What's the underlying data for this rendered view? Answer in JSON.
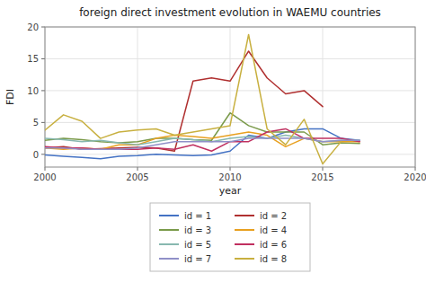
{
  "chart_data": {
    "type": "line",
    "title": "foreign direct investment evolution in WAEMU countries",
    "xlabel": "year",
    "ylabel": "FDI",
    "x": [
      2000,
      2001,
      2002,
      2003,
      2004,
      2005,
      2006,
      2007,
      2008,
      2009,
      2010,
      2011,
      2012,
      2013,
      2014,
      2015,
      2016,
      2017
    ],
    "xlim": [
      2000,
      2020
    ],
    "xticks": [
      2000,
      2005,
      2010,
      2015,
      2020
    ],
    "ylim": [
      -2,
      20
    ],
    "yticks": [
      0,
      5,
      10,
      15,
      20
    ],
    "grid": true,
    "legend": "bottom",
    "series": [
      {
        "name": "id = 1",
        "color": "#4472c4",
        "values": [
          -0.1,
          -0.3,
          -0.5,
          -0.7,
          -0.3,
          -0.2,
          0.0,
          -0.1,
          -0.2,
          -0.1,
          0.5,
          3.0,
          2.5,
          3.5,
          4.0,
          4.0,
          2.5,
          2.2
        ]
      },
      {
        "name": "id = 2",
        "color": "#b03030",
        "values": [
          1.0,
          1.2,
          0.8,
          0.9,
          1.0,
          1.1,
          1.0,
          0.5,
          11.5,
          12.0,
          11.5,
          16.2,
          12.0,
          9.5,
          10.0,
          7.5,
          null,
          null
        ]
      },
      {
        "name": "id = 3",
        "color": "#7a9a4a",
        "values": [
          2.2,
          2.5,
          2.3,
          2.0,
          1.8,
          2.0,
          2.5,
          2.5,
          2.3,
          2.2,
          6.5,
          4.5,
          3.5,
          3.5,
          3.5,
          1.5,
          1.8,
          1.7
        ]
      },
      {
        "name": "id = 4",
        "color": "#e8a020",
        "values": [
          1.0,
          0.8,
          1.0,
          0.8,
          1.5,
          1.5,
          2.5,
          3.0,
          2.8,
          2.5,
          3.0,
          3.5,
          3.0,
          1.2,
          2.5,
          2.0,
          2.0,
          2.0
        ]
      },
      {
        "name": "id = 5",
        "color": "#88b8b0",
        "values": [
          2.5,
          2.3,
          2.0,
          2.2,
          1.8,
          1.5,
          2.0,
          2.5,
          2.3,
          2.0,
          2.5,
          2.8,
          2.5,
          3.0,
          2.5,
          2.0,
          2.2,
          2.2
        ]
      },
      {
        "name": "id = 6",
        "color": "#c03060",
        "values": [
          1.2,
          1.0,
          1.0,
          0.8,
          0.8,
          0.8,
          1.0,
          0.8,
          1.5,
          0.5,
          2.0,
          2.0,
          3.5,
          4.0,
          2.5,
          2.5,
          2.5,
          2.0
        ]
      },
      {
        "name": "id = 7",
        "color": "#9090c8",
        "values": [
          1.0,
          1.0,
          0.8,
          0.8,
          0.8,
          1.0,
          1.5,
          2.0,
          2.0,
          2.0,
          2.0,
          2.5,
          2.5,
          2.5,
          2.5,
          2.0,
          2.2,
          2.2
        ]
      },
      {
        "name": "id = 8",
        "color": "#c8b040",
        "values": [
          3.8,
          6.2,
          5.2,
          2.5,
          3.5,
          3.8,
          4.0,
          3.0,
          3.5,
          4.0,
          4.5,
          18.8,
          4.0,
          1.5,
          5.5,
          -1.5,
          2.0,
          null
        ]
      }
    ]
  }
}
